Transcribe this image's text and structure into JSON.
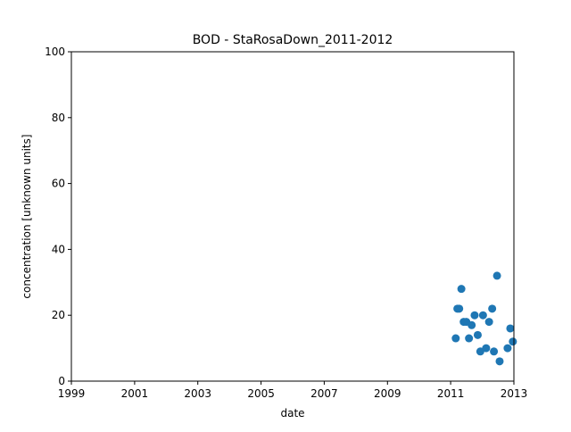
{
  "chart_data": {
    "type": "scatter",
    "title": "BOD - StaRosaDown_2011-2012",
    "xlabel": "date",
    "ylabel": "concentration [unknown units]",
    "xlim": [
      "1999-01-01",
      "2013-01-01"
    ],
    "ylim": [
      0,
      100
    ],
    "x_ticks": [
      "1999",
      "2001",
      "2003",
      "2005",
      "2007",
      "2009",
      "2011",
      "2013"
    ],
    "y_ticks": [
      "0",
      "20",
      "40",
      "60",
      "80",
      "100"
    ],
    "grid": false,
    "legend": "none",
    "marker_color": "#1f77b4",
    "points": [
      {
        "x": "2011-03-01",
        "y": 13
      },
      {
        "x": "2011-03-20",
        "y": 22
      },
      {
        "x": "2011-04-10",
        "y": 22
      },
      {
        "x": "2011-05-05",
        "y": 28
      },
      {
        "x": "2011-06-01",
        "y": 18
      },
      {
        "x": "2011-07-01",
        "y": 18
      },
      {
        "x": "2011-08-01",
        "y": 13
      },
      {
        "x": "2011-09-01",
        "y": 17
      },
      {
        "x": "2011-10-05",
        "y": 20
      },
      {
        "x": "2011-11-10",
        "y": 14
      },
      {
        "x": "2011-12-10",
        "y": 9
      },
      {
        "x": "2012-01-10",
        "y": 20
      },
      {
        "x": "2012-02-15",
        "y": 10
      },
      {
        "x": "2012-03-20",
        "y": 18
      },
      {
        "x": "2012-04-25",
        "y": 22
      },
      {
        "x": "2012-05-15",
        "y": 9
      },
      {
        "x": "2012-06-20",
        "y": 32
      },
      {
        "x": "2012-07-20",
        "y": 6
      },
      {
        "x": "2012-10-20",
        "y": 10
      },
      {
        "x": "2012-11-20",
        "y": 16
      },
      {
        "x": "2012-12-20",
        "y": 12
      }
    ]
  }
}
